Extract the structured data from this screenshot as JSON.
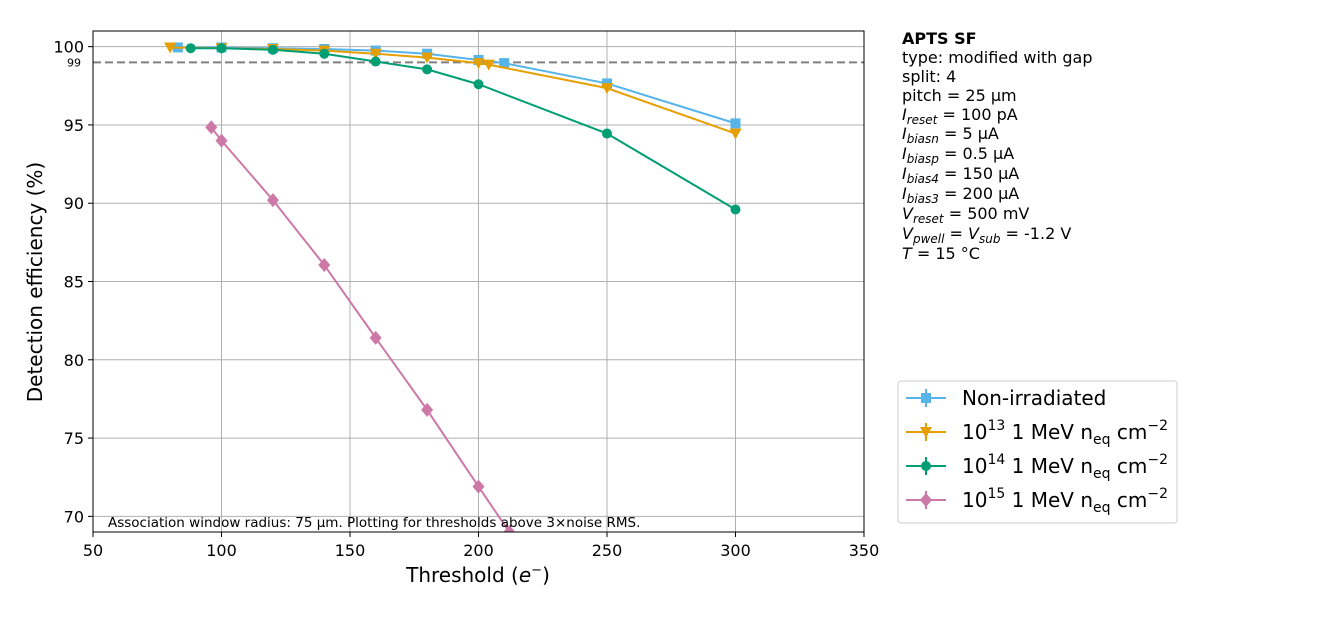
{
  "chart_data": {
    "type": "line",
    "xlabel": "Threshold (e⁻)",
    "ylabel": "Detection efficiency (%)",
    "xlim": [
      50,
      350
    ],
    "ylim": [
      69,
      101
    ],
    "xticks": [
      50,
      100,
      150,
      200,
      250,
      300,
      350
    ],
    "yticks": [
      70,
      75,
      80,
      85,
      90,
      95,
      100
    ],
    "grid": true,
    "reference_line": {
      "y": 99,
      "label": "99",
      "style": "dashed",
      "color": "#808080"
    },
    "annotation": "Association window radius: 75 µm. Plotting for thresholds above 3×noise RMS.",
    "legend_position": "right-bottom",
    "series": [
      {
        "name": "Non-irradiated",
        "label_base": "Non-irradiated",
        "label_exp": "",
        "label_sub": "",
        "label_tail": "",
        "label_tail_exp": "",
        "color": "#56B4E9",
        "marker": "square",
        "x": [
          83,
          100,
          120,
          140,
          160,
          180,
          200,
          210,
          250,
          300
        ],
        "y": [
          99.95,
          99.95,
          99.9,
          99.85,
          99.75,
          99.55,
          99.15,
          98.95,
          97.65,
          95.1
        ]
      },
      {
        "name": "10^13 1 MeV n_eq cm^-2",
        "label_base": "10",
        "label_exp": "13",
        "label_mid": " 1 MeV n",
        "label_sub": "eq",
        "label_tail": " cm",
        "label_tail_exp": "−2",
        "color": "#E69F00",
        "marker": "triangle-down",
        "x": [
          80,
          100,
          120,
          140,
          160,
          180,
          200,
          204,
          250,
          300
        ],
        "y": [
          99.95,
          99.9,
          99.85,
          99.75,
          99.55,
          99.3,
          98.95,
          98.85,
          97.35,
          94.45
        ]
      },
      {
        "name": "10^14 1 MeV n_eq cm^-2",
        "label_base": "10",
        "label_exp": "14",
        "label_mid": " 1 MeV n",
        "label_sub": "eq",
        "label_tail": " cm",
        "label_tail_exp": "−2",
        "color": "#009E73",
        "marker": "circle",
        "x": [
          88,
          100,
          120,
          140,
          160,
          180,
          200,
          250,
          300
        ],
        "y": [
          99.9,
          99.9,
          99.8,
          99.55,
          99.05,
          98.55,
          97.6,
          94.45,
          89.6
        ]
      },
      {
        "name": "10^15 1 MeV n_eq cm^-2",
        "label_base": "10",
        "label_exp": "15",
        "label_mid": " 1 MeV n",
        "label_sub": "eq",
        "label_tail": " cm",
        "label_tail_exp": "−2",
        "color": "#CC79A7",
        "marker": "diamond",
        "x": [
          96,
          100,
          120,
          140,
          160,
          180,
          200,
          212
        ],
        "y": [
          94.85,
          94.0,
          90.2,
          86.05,
          81.4,
          76.8,
          71.9,
          69
        ]
      }
    ]
  },
  "info": {
    "title": "APTS SF",
    "type_line": "type: modified with gap",
    "split_line": "split:  4",
    "pitch_line": "pitch = 25 µm",
    "i_reset": {
      "sym": "I",
      "sub": "reset",
      "val": " = 100 pA"
    },
    "i_biasn": {
      "sym": "I",
      "sub": "biasn",
      "val": " = 5 µA"
    },
    "i_biasp": {
      "sym": "I",
      "sub": "biasp",
      "val": " = 0.5 µA"
    },
    "i_bias4": {
      "sym": "I",
      "sub": "bias4",
      "val": " = 150 µA"
    },
    "i_bias3": {
      "sym": "I",
      "sub": "bias3",
      "val": " = 200 µA"
    },
    "v_reset": {
      "sym": "V",
      "sub": "reset",
      "val": " = 500 mV"
    },
    "v_pwell": {
      "sym": "V",
      "sub": "pwell",
      "mid": " = ",
      "sym2": "V",
      "sub2": "sub",
      "val": " = -1.2 V"
    },
    "temp": {
      "sym": "T",
      "val": " = 15 °C"
    }
  }
}
